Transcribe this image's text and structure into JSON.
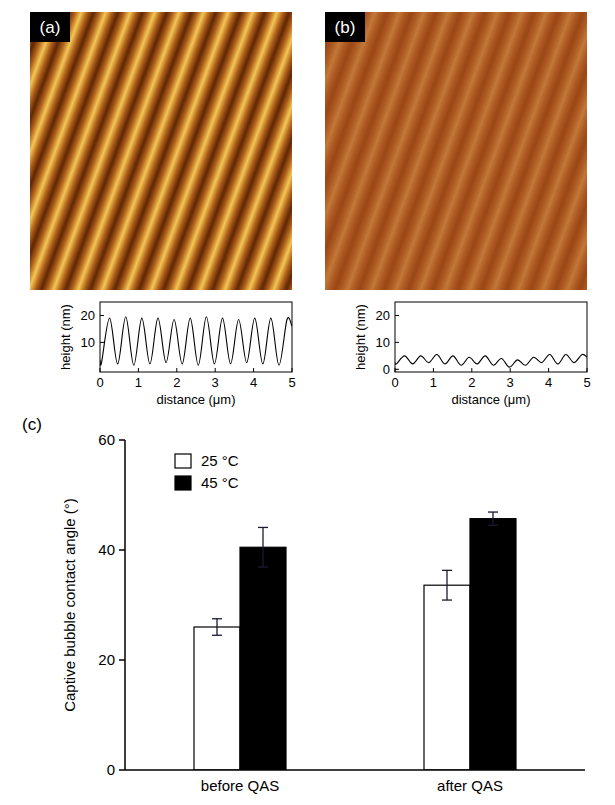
{
  "chart_data": [
    {
      "type": "line",
      "panel": "(a)",
      "x_label": "distance (μm)",
      "y_label": "height (nm)",
      "x": [
        0,
        0.04,
        0.25,
        0.46,
        0.67,
        0.88,
        1.09,
        1.3,
        1.51,
        1.72,
        1.93,
        2.14,
        2.35,
        2.56,
        2.77,
        2.98,
        3.19,
        3.4,
        3.61,
        3.82,
        4.03,
        4.24,
        4.45,
        4.66,
        4.87,
        5
      ],
      "values": [
        3.5,
        2.5,
        19,
        2,
        19.5,
        1.5,
        19,
        2,
        19,
        2.5,
        18.5,
        2,
        19,
        1.5,
        19.5,
        2,
        19,
        2,
        18.5,
        2.5,
        19,
        2,
        19,
        1.5,
        18.5,
        16
      ],
      "color": "#000000",
      "xlim": [
        0,
        5
      ],
      "xticks": [
        0,
        1,
        2,
        3,
        4,
        5
      ],
      "ylim": [
        -1,
        25
      ],
      "yticks": [
        10,
        20
      ]
    },
    {
      "type": "line",
      "panel": "(b)",
      "x_label": "distance (μm)",
      "y_label": "height (nm)",
      "x": [
        0,
        0.04,
        0.25,
        0.46,
        0.67,
        0.88,
        1.09,
        1.3,
        1.51,
        1.72,
        1.93,
        2.14,
        2.35,
        2.56,
        2.77,
        2.98,
        3.19,
        3.4,
        3.61,
        3.82,
        4.03,
        4.24,
        4.45,
        4.66,
        4.87,
        5
      ],
      "values": [
        2.5,
        2,
        5,
        2,
        5,
        2.5,
        5.5,
        2,
        5,
        1.5,
        4.5,
        2,
        5,
        1.5,
        4,
        0.8,
        3.5,
        1.5,
        4.5,
        2.5,
        5.5,
        2,
        5.5,
        2.5,
        5.5,
        4.5
      ],
      "color": "#000000",
      "xlim": [
        0,
        5
      ],
      "xticks": [
        0,
        1,
        2,
        3,
        4,
        5
      ],
      "ylim": [
        -1,
        25
      ],
      "yticks": [
        0,
        10,
        20
      ]
    },
    {
      "type": "bar",
      "panel": "(c)",
      "y_label": "Captive bubble contact angle (°)",
      "categories": [
        "before QAS",
        "after QAS"
      ],
      "series": [
        {
          "name": "25 °C",
          "color": "#ffffff",
          "values": [
            26,
            33.6
          ],
          "errors": [
            1.5,
            2.7
          ]
        },
        {
          "name": "45 °C",
          "color": "#000000",
          "values": [
            40.5,
            45.7
          ],
          "errors": [
            3.6,
            1.2
          ]
        }
      ],
      "ylim": [
        0,
        60
      ],
      "yticks": [
        0,
        20,
        40,
        60
      ],
      "legend": "upper left"
    }
  ]
}
